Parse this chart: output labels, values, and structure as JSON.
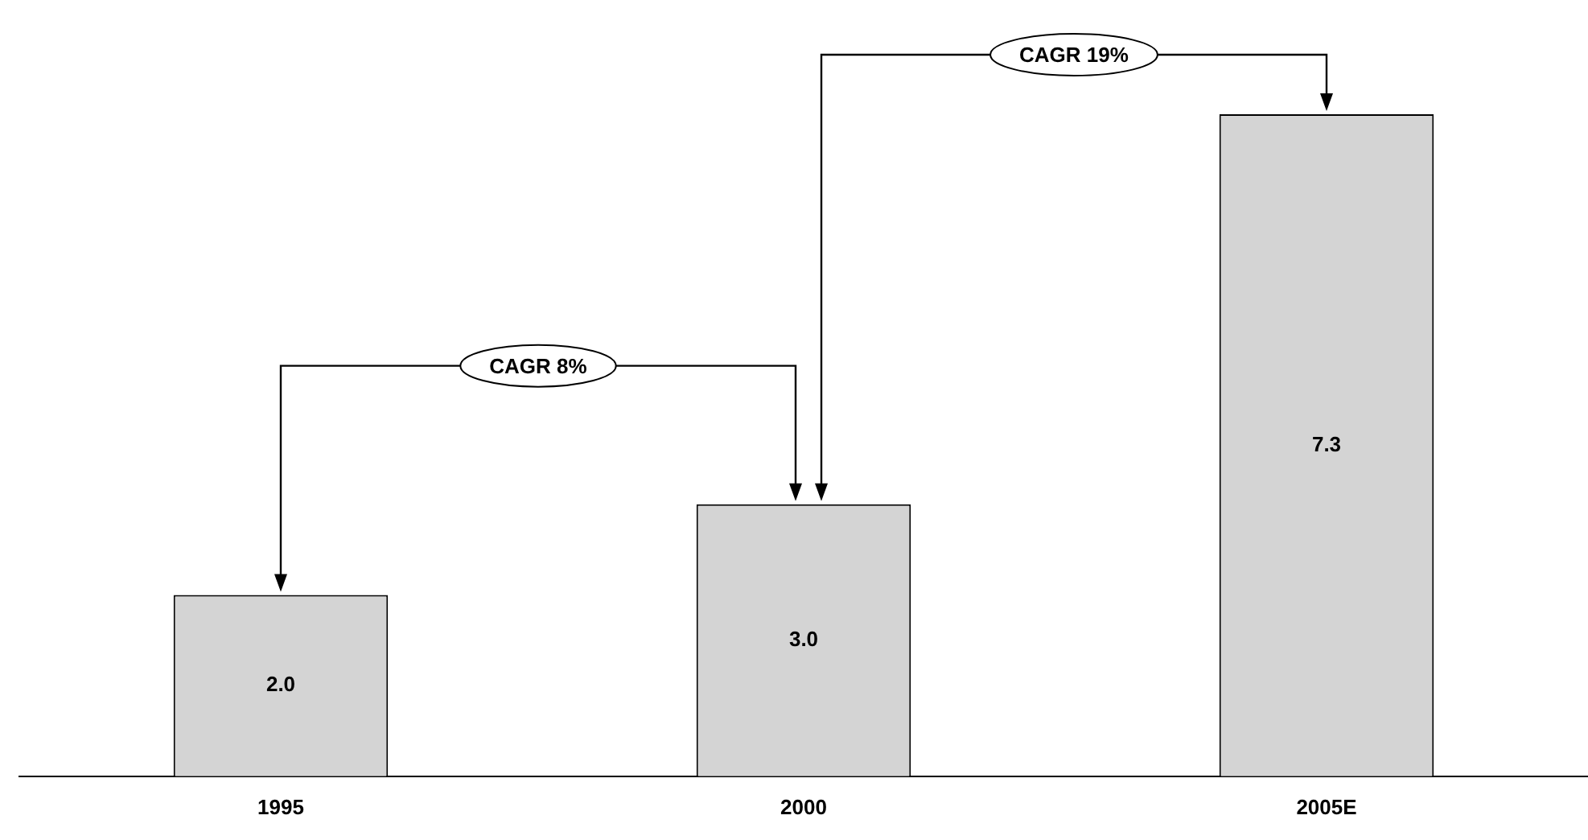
{
  "chart_data": {
    "type": "bar",
    "categories": [
      "1995",
      "2000",
      "2005E"
    ],
    "values": [
      2.0,
      3.0,
      7.3
    ],
    "value_labels": [
      "2.0",
      "3.0",
      "7.3"
    ],
    "color": "#d4d4d4",
    "legend": false,
    "annotations": [
      "CAGR 8%",
      "CAGR 19%"
    ]
  }
}
